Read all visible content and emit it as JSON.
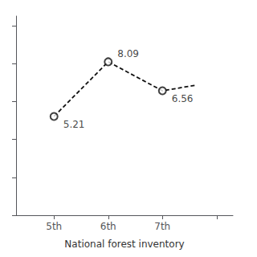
{
  "chart_data": {
    "type": "line",
    "xlabel": "National forest inventory",
    "x": [
      1,
      2,
      3,
      3.6
    ],
    "series": [
      {
        "type": "line",
        "line_style": "dashed",
        "color": "#111111",
        "values": [
          5.21,
          8.09,
          6.56,
          6.85
        ]
      },
      {
        "type": "scatter",
        "marker": "open circle",
        "color": "#111111",
        "data_labels": true,
        "values": [
          5.21,
          8.09,
          6.56,
          null
        ]
      }
    ],
    "xlim": [
      0.3,
      4.3
    ],
    "xticks": [
      {
        "value": 1,
        "label": "5th"
      },
      {
        "value": 2,
        "label": "6th"
      },
      {
        "value": 3,
        "label": "7th"
      },
      {
        "value": 4,
        "label": null
      }
    ],
    "ylim": [
      0.0,
      10.5
    ],
    "yticks": [
      0,
      2,
      4,
      6,
      8,
      10
    ],
    "tick_labels": "x",
    "grid": false
  }
}
